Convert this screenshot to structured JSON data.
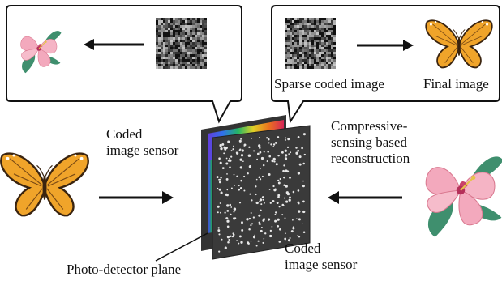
{
  "left_bubble": {
    "caption": ""
  },
  "right_bubble": {
    "sparse_label": "Sparse coded image",
    "final_label": "Final image"
  },
  "labels": {
    "coded_sensor_top": [
      "Coded",
      "image sensor"
    ],
    "compressive": [
      "Compressive-",
      "sensing based",
      "reconstruction"
    ],
    "photo_detector": "Photo-detector plane",
    "coded_sensor_bottom": [
      "Coded",
      "image sensor"
    ]
  },
  "icons": {
    "butterfly": "butterfly-icon",
    "flower": "hibiscus-flower-icon",
    "arrow": "arrow-icon",
    "noise": "coded-noise-pattern"
  },
  "colors": {
    "butterfly_wing": "#f0a42a",
    "butterfly_edge": "#3a2410",
    "flower_petal": "#f3a9bd",
    "leaf": "#3f8f6e",
    "sensor_plate": "#3a3a3a"
  }
}
